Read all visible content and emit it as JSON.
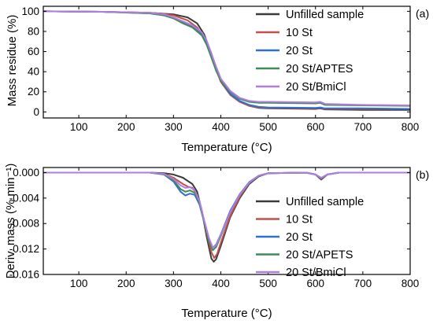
{
  "chart_data": [
    {
      "type": "line",
      "panel_label": "(a)",
      "xlabel": "Temperature (°C)",
      "ylabel": "Mass residue (%)",
      "xlim": [
        25,
        800
      ],
      "ylim": [
        -6,
        105
      ],
      "xticks": [
        100,
        200,
        300,
        400,
        500,
        600,
        700,
        800
      ],
      "yticks": [
        0,
        20,
        40,
        60,
        80,
        100
      ],
      "legend_position": "top-right",
      "series": [
        {
          "name": "Unfilled sample",
          "color": "#3a3a3a",
          "x": [
            25,
            150,
            250,
            300,
            330,
            350,
            365,
            380,
            390,
            400,
            420,
            440,
            460,
            480,
            500,
            600,
            610,
            620,
            700,
            800
          ],
          "y": [
            100,
            99.5,
            98.5,
            97,
            94,
            88,
            77,
            58,
            43,
            30,
            17,
            10,
            6,
            4,
            3.5,
            3,
            3.5,
            2.5,
            2,
            2
          ]
        },
        {
          "name": "10 St",
          "color": "#c0504d",
          "x": [
            25,
            150,
            250,
            280,
            300,
            330,
            350,
            365,
            380,
            390,
            400,
            420,
            440,
            460,
            480,
            500,
            600,
            610,
            620,
            700,
            800
          ],
          "y": [
            100,
            99.5,
            98.5,
            97.5,
            96,
            91,
            84,
            74,
            56,
            42,
            30,
            17,
            10,
            6,
            4.5,
            4,
            3.5,
            4,
            3,
            3,
            3
          ]
        },
        {
          "name": "20 St",
          "color": "#2e6fd0",
          "x": [
            25,
            150,
            250,
            280,
            300,
            320,
            340,
            360,
            370,
            380,
            390,
            400,
            420,
            440,
            460,
            480,
            500,
            600,
            610,
            620,
            700,
            800
          ],
          "y": [
            100,
            99.5,
            98,
            96,
            94,
            89,
            85,
            77,
            68,
            55,
            42,
            31,
            18,
            11,
            7,
            5,
            4.5,
            4,
            4.5,
            3.5,
            3.5,
            3
          ]
        },
        {
          "name": "20 St/APTES",
          "color": "#3d8c57",
          "x": [
            25,
            150,
            250,
            280,
            300,
            320,
            340,
            360,
            370,
            380,
            390,
            400,
            420,
            440,
            460,
            480,
            500,
            600,
            610,
            620,
            700,
            800
          ],
          "y": [
            100,
            99.5,
            98,
            96,
            93,
            88,
            84,
            76,
            67,
            54,
            41,
            31,
            20,
            13,
            10,
            9,
            9,
            8.5,
            9,
            7,
            6.5,
            6
          ]
        },
        {
          "name": "20 St/BmiCl",
          "color": "#b07ce0",
          "x": [
            25,
            150,
            250,
            280,
            300,
            320,
            340,
            360,
            370,
            380,
            390,
            400,
            420,
            440,
            460,
            480,
            500,
            600,
            610,
            620,
            700,
            800
          ],
          "y": [
            100,
            99.5,
            98.5,
            97,
            94,
            90,
            86,
            79,
            71,
            58,
            45,
            33,
            21,
            14,
            11,
            10,
            10,
            9.5,
            10,
            8,
            7,
            6.5
          ]
        }
      ]
    },
    {
      "type": "line",
      "panel_label": "(b)",
      "xlabel": "Temperature (°C)",
      "ylabel": "Deriv. mass (% min⁻¹)",
      "xlim": [
        25,
        800
      ],
      "ylim": [
        -0.016,
        0.0008
      ],
      "xticks": [
        100,
        200,
        300,
        400,
        500,
        600,
        700,
        800
      ],
      "yticks": [
        "0.000",
        "-0.004",
        "-0.008",
        "-0.012",
        "-0.016"
      ],
      "legend_position": "bottom-right",
      "series": [
        {
          "name": "Unfilled sample",
          "color": "#3a3a3a",
          "x": [
            25,
            250,
            280,
            300,
            320,
            340,
            350,
            360,
            370,
            380,
            385,
            390,
            400,
            420,
            440,
            460,
            480,
            500,
            580,
            600,
            612,
            625,
            650,
            800
          ],
          "y": [
            0,
            0,
            -0.0001,
            -0.0003,
            -0.0008,
            -0.0018,
            -0.003,
            -0.006,
            -0.01,
            -0.0135,
            -0.014,
            -0.0136,
            -0.0115,
            -0.007,
            -0.004,
            -0.0018,
            -0.0006,
            -0.0001,
            0,
            -0.0003,
            -0.0011,
            -0.0003,
            0,
            0
          ]
        },
        {
          "name": "10 St",
          "color": "#c0504d",
          "x": [
            25,
            250,
            280,
            300,
            320,
            330,
            340,
            350,
            360,
            370,
            380,
            386,
            392,
            400,
            420,
            440,
            460,
            480,
            500,
            580,
            600,
            612,
            625,
            650,
            800
          ],
          "y": [
            0,
            0,
            -0.0002,
            -0.0008,
            -0.0018,
            -0.0022,
            -0.0024,
            -0.0035,
            -0.006,
            -0.0095,
            -0.0125,
            -0.0134,
            -0.0128,
            -0.011,
            -0.0068,
            -0.0038,
            -0.0016,
            -0.0005,
            -0.0001,
            0,
            -0.0003,
            -0.001,
            -0.0003,
            0,
            0
          ]
        },
        {
          "name": "20 St",
          "color": "#2e6fd0",
          "x": [
            25,
            250,
            280,
            300,
            315,
            325,
            335,
            345,
            355,
            365,
            375,
            383,
            390,
            400,
            420,
            440,
            460,
            480,
            500,
            580,
            600,
            612,
            625,
            650,
            800
          ],
          "y": [
            0,
            0,
            -0.0003,
            -0.0014,
            -0.003,
            -0.0036,
            -0.0033,
            -0.0035,
            -0.005,
            -0.0078,
            -0.0105,
            -0.0118,
            -0.0113,
            -0.0097,
            -0.006,
            -0.0034,
            -0.0015,
            -0.0005,
            -0.0001,
            0,
            -0.0003,
            -0.0009,
            -0.0003,
            0,
            0
          ]
        },
        {
          "name": "20 St/APETS",
          "color": "#3d8c57",
          "x": [
            25,
            250,
            280,
            300,
            315,
            325,
            335,
            345,
            355,
            365,
            375,
            383,
            390,
            400,
            420,
            440,
            460,
            480,
            500,
            580,
            600,
            612,
            625,
            650,
            800
          ],
          "y": [
            0,
            0,
            -0.0003,
            -0.0012,
            -0.0026,
            -0.003,
            -0.0028,
            -0.0032,
            -0.0048,
            -0.0078,
            -0.0108,
            -0.0122,
            -0.0117,
            -0.01,
            -0.0062,
            -0.0035,
            -0.0016,
            -0.0005,
            -0.0001,
            0,
            -0.0003,
            -0.0009,
            -0.0003,
            0,
            0
          ]
        },
        {
          "name": "20 St/BmiCl",
          "color": "#b07ce0",
          "x": [
            25,
            250,
            280,
            300,
            315,
            325,
            335,
            345,
            355,
            365,
            375,
            383,
            390,
            400,
            420,
            440,
            460,
            480,
            500,
            580,
            600,
            612,
            625,
            650,
            800
          ],
          "y": [
            0,
            0,
            -0.0002,
            -0.001,
            -0.002,
            -0.0024,
            -0.0023,
            -0.0028,
            -0.0045,
            -0.0075,
            -0.0103,
            -0.0118,
            -0.0114,
            -0.0098,
            -0.0062,
            -0.0035,
            -0.0016,
            -0.0005,
            -0.0001,
            0,
            -0.0003,
            -0.0008,
            -0.0003,
            0,
            0
          ]
        }
      ]
    }
  ]
}
